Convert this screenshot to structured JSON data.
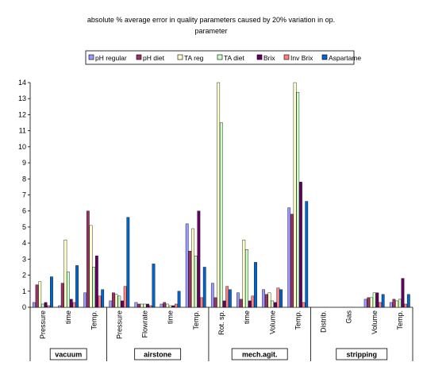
{
  "chart_data": {
    "type": "bar",
    "title_lines": [
      "absolute % average error in quality parameters caused by 20% variation in op.",
      "parameter"
    ],
    "ylim": [
      0,
      14
    ],
    "yticks": [
      0,
      1,
      2,
      3,
      4,
      5,
      6,
      7,
      8,
      9,
      10,
      11,
      12,
      13,
      14
    ],
    "grid": false,
    "legend_position": "top",
    "categories": [
      "Pressure",
      "time",
      "Temp.",
      "Pressure",
      "Flowrate",
      "time",
      "Temp.",
      "Rot. sp.",
      "time",
      "Volume",
      "Temp.",
      "Distrib.",
      "Gas",
      "Volume",
      "Temp."
    ],
    "groups": [
      {
        "label": "vacuum",
        "count": 3
      },
      {
        "label": "airstone",
        "count": 4
      },
      {
        "label": "mech.agit.",
        "count": 4
      },
      {
        "label": "stripping",
        "count": 4
      }
    ],
    "series": [
      {
        "name": "pH regular",
        "color": "#9999ff",
        "values": [
          0.3,
          0.1,
          0.9,
          0.4,
          0.3,
          0.2,
          5.2,
          1.5,
          0.9,
          1.1,
          6.2,
          0,
          0,
          0.5,
          0.3
        ]
      },
      {
        "name": "pH diet",
        "color": "#993366",
        "values": [
          1.4,
          1.5,
          6.0,
          0.9,
          0.2,
          0.3,
          3.5,
          0.6,
          0.5,
          0.8,
          5.8,
          0,
          0,
          0.6,
          0.5
        ]
      },
      {
        "name": "TA reg",
        "color": "#ffffcc",
        "values": [
          1.6,
          4.2,
          5.1,
          0.8,
          0.2,
          0.2,
          4.9,
          14.0,
          4.2,
          0.9,
          14.0,
          0,
          0,
          0.6,
          0.4
        ]
      },
      {
        "name": "TA diet",
        "color": "#ccffcc",
        "values": [
          0.2,
          2.2,
          2.5,
          0.7,
          0.2,
          0.1,
          3.2,
          11.5,
          3.6,
          0.4,
          13.4,
          0,
          0,
          0.9,
          0.5
        ]
      },
      {
        "name": "Brix",
        "color": "#660066",
        "values": [
          0.3,
          0.5,
          3.2,
          0.4,
          0.2,
          0.1,
          6.0,
          0.4,
          0.4,
          0.3,
          7.8,
          0,
          0,
          0.9,
          1.8
        ]
      },
      {
        "name": "Inv Brix",
        "color": "#ff8080",
        "values": [
          0.1,
          0.3,
          0.7,
          1.3,
          0.1,
          0.2,
          0.6,
          1.3,
          0.7,
          1.2,
          0.3,
          0,
          0,
          0.3,
          0.2
        ]
      },
      {
        "name": "Aspartame",
        "color": "#0066cc",
        "values": [
          1.9,
          2.6,
          1.1,
          5.6,
          2.7,
          1.0,
          2.5,
          1.1,
          2.8,
          1.1,
          6.6,
          0,
          0,
          0.8,
          0.8
        ]
      }
    ]
  }
}
